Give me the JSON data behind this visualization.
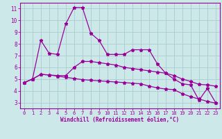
{
  "x": [
    0,
    1,
    2,
    3,
    4,
    5,
    6,
    7,
    8,
    9,
    10,
    11,
    12,
    13,
    14,
    15,
    16,
    17,
    18,
    19,
    20,
    21,
    22,
    23
  ],
  "line_spike": [
    4.7,
    5.0,
    8.3,
    7.2,
    7.1,
    9.7,
    11.1,
    11.1,
    8.9,
    8.3,
    7.1,
    7.1,
    7.1,
    7.5,
    7.5,
    7.5,
    6.3,
    5.5,
    5.0,
    4.6,
    4.5,
    3.2,
    4.2,
    3.0
  ],
  "line_mid": [
    4.7,
    5.0,
    5.4,
    5.35,
    5.3,
    5.3,
    6.0,
    6.5,
    6.5,
    6.4,
    6.3,
    6.2,
    6.0,
    5.9,
    5.8,
    5.7,
    5.6,
    5.5,
    5.3,
    5.0,
    4.8,
    4.55,
    4.5,
    4.4
  ],
  "line_low": [
    4.7,
    5.0,
    5.4,
    5.35,
    5.25,
    5.15,
    5.05,
    4.95,
    4.9,
    4.85,
    4.8,
    4.75,
    4.7,
    4.65,
    4.6,
    4.4,
    4.25,
    4.15,
    4.1,
    3.75,
    3.5,
    3.3,
    3.1,
    2.95
  ],
  "color": "#990099",
  "bg_color": "#cce8e8",
  "grid_color": "#aacccc",
  "xlabel": "Windchill (Refroidissement éolien,°C)",
  "ylim": [
    2.5,
    11.5
  ],
  "xlim": [
    -0.5,
    23.5
  ],
  "yticks": [
    3,
    4,
    5,
    6,
    7,
    8,
    9,
    10,
    11
  ],
  "xticks": [
    0,
    1,
    2,
    3,
    4,
    5,
    6,
    7,
    8,
    9,
    10,
    11,
    12,
    13,
    14,
    15,
    16,
    17,
    18,
    19,
    20,
    21,
    22,
    23
  ],
  "marker": "*",
  "markersize": 3.5,
  "linewidth": 0.9,
  "tick_fontsize": 5.0,
  "xlabel_fontsize": 5.5
}
